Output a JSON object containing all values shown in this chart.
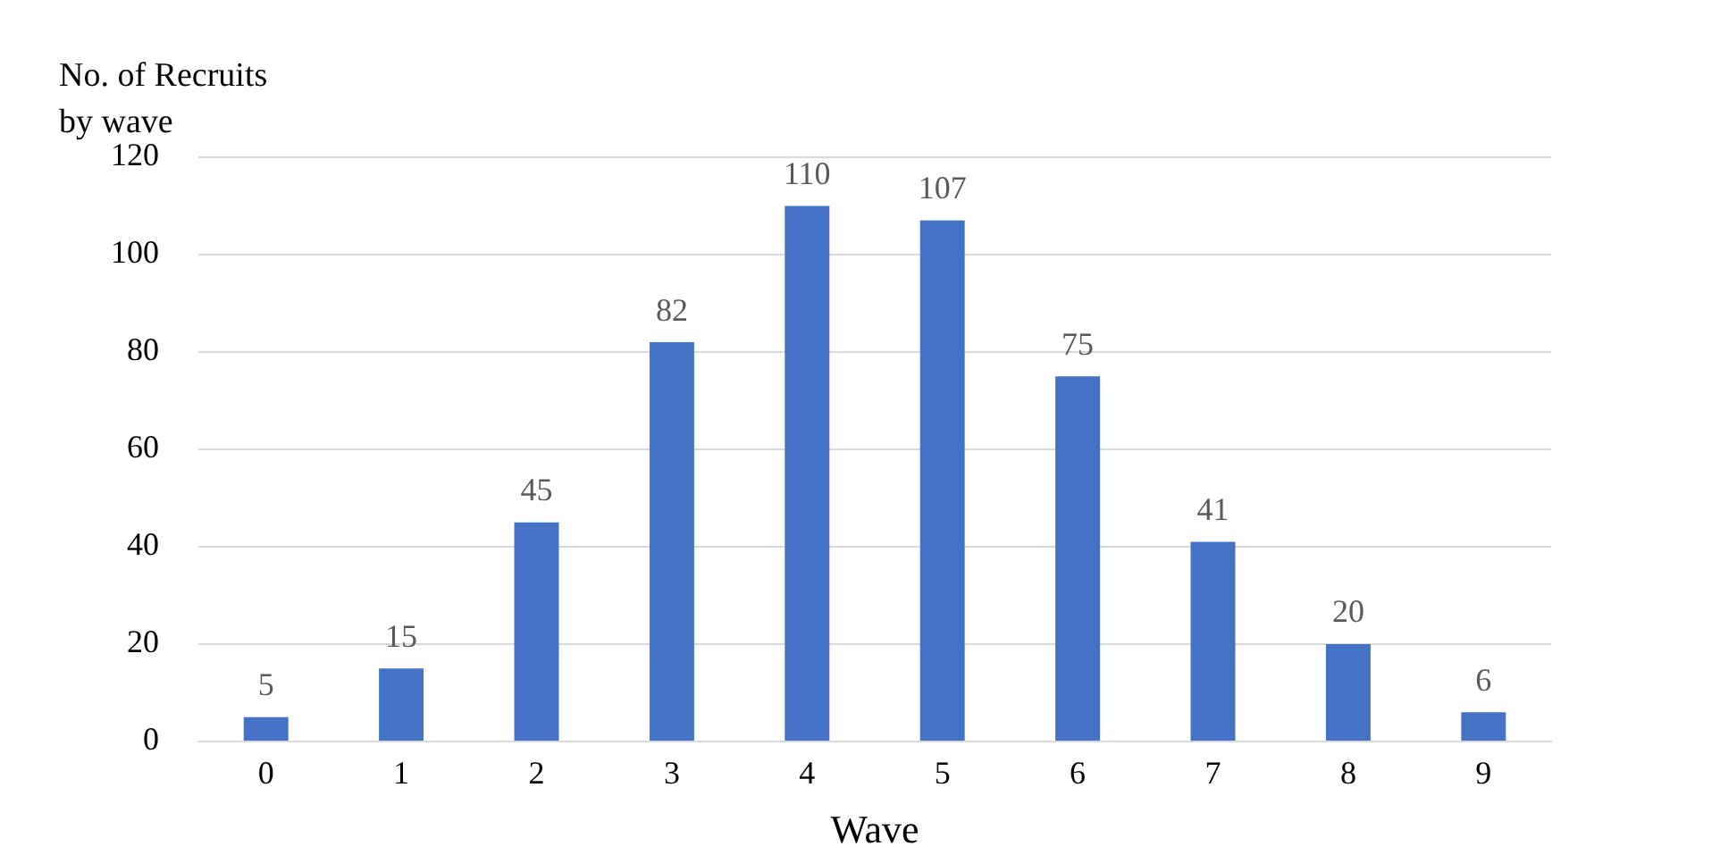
{
  "chart_data": {
    "type": "bar",
    "ylabel": "No. of Recruits by wave",
    "xlabel": "Wave",
    "categories": [
      "0",
      "1",
      "2",
      "3",
      "4",
      "5",
      "6",
      "7",
      "8",
      "9"
    ],
    "values": [
      5,
      15,
      45,
      82,
      110,
      107,
      75,
      41,
      20,
      6
    ],
    "color": "#4472c4",
    "ylim": [
      0,
      120
    ],
    "yticks": [
      0,
      20,
      40,
      60,
      80,
      100,
      120
    ],
    "grid": "y",
    "data_labels": true,
    "legend": false
  }
}
